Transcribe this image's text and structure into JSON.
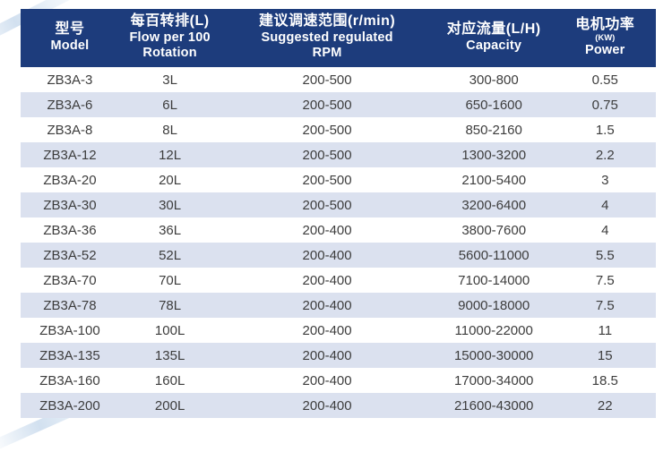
{
  "colors": {
    "header_bg": "#1d3c7c",
    "header_text": "#ffffff",
    "row_stripe": "#dbe1ef",
    "row_text": "#3d3d3d",
    "page_bg": "#ffffff"
  },
  "table": {
    "columns": [
      {
        "zh": "型号",
        "en": "Model"
      },
      {
        "zh": "每百转排(L)",
        "en": "Flow per 100",
        "en2": "Rotation"
      },
      {
        "zh": "建议调速范围(r/min)",
        "en": "Suggested regulated",
        "en2": "RPM"
      },
      {
        "zh": "对应流量(L/H)",
        "en": "Capacity"
      },
      {
        "zh": "电机功率",
        "sub": "(KW)",
        "en": "Power"
      }
    ],
    "rows": [
      {
        "model": "ZB3A-3",
        "flow": "3L",
        "rpm": "200-500",
        "capacity": "300-800",
        "power": "0.55"
      },
      {
        "model": "ZB3A-6",
        "flow": "6L",
        "rpm": "200-500",
        "capacity": "650-1600",
        "power": "0.75"
      },
      {
        "model": "ZB3A-8",
        "flow": "8L",
        "rpm": "200-500",
        "capacity": "850-2160",
        "power": "1.5"
      },
      {
        "model": "ZB3A-12",
        "flow": "12L",
        "rpm": "200-500",
        "capacity": "1300-3200",
        "power": "2.2"
      },
      {
        "model": "ZB3A-20",
        "flow": "20L",
        "rpm": "200-500",
        "capacity": "2100-5400",
        "power": "3"
      },
      {
        "model": "ZB3A-30",
        "flow": "30L",
        "rpm": "200-500",
        "capacity": "3200-6400",
        "power": "4"
      },
      {
        "model": "ZB3A-36",
        "flow": "36L",
        "rpm": "200-400",
        "capacity": "3800-7600",
        "power": "4"
      },
      {
        "model": "ZB3A-52",
        "flow": "52L",
        "rpm": "200-400",
        "capacity": "5600-11000",
        "power": "5.5"
      },
      {
        "model": "ZB3A-70",
        "flow": "70L",
        "rpm": "200-400",
        "capacity": "7100-14000",
        "power": "7.5"
      },
      {
        "model": "ZB3A-78",
        "flow": "78L",
        "rpm": "200-400",
        "capacity": "9000-18000",
        "power": "7.5"
      },
      {
        "model": "ZB3A-100",
        "flow": "100L",
        "rpm": "200-400",
        "capacity": "11000-22000",
        "power": "11"
      },
      {
        "model": "ZB3A-135",
        "flow": "135L",
        "rpm": "200-400",
        "capacity": "15000-30000",
        "power": "15"
      },
      {
        "model": "ZB3A-160",
        "flow": "160L",
        "rpm": "200-400",
        "capacity": "17000-34000",
        "power": "18.5"
      },
      {
        "model": "ZB3A-200",
        "flow": "200L",
        "rpm": "200-400",
        "capacity": "21600-43000",
        "power": "22"
      }
    ]
  }
}
